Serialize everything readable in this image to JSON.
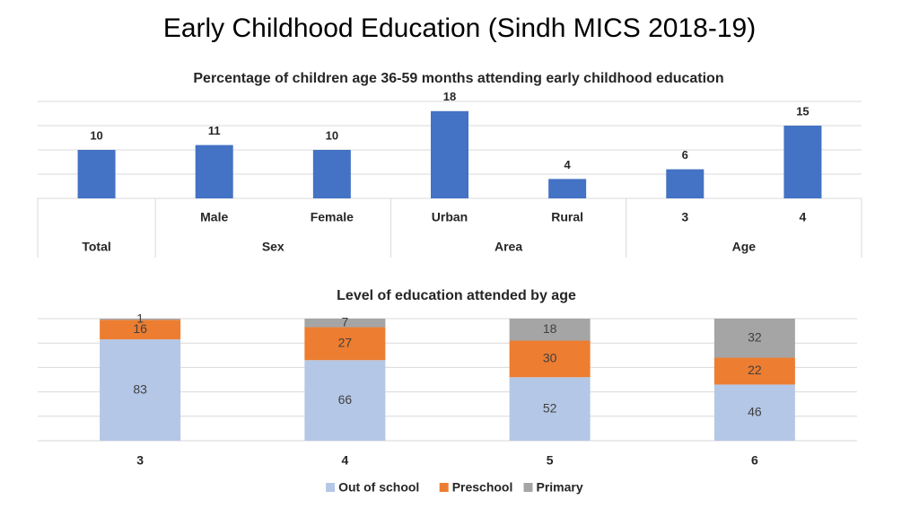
{
  "title": "Early Childhood Education (Sindh MICS 2018-19)",
  "chart_data": [
    {
      "type": "bar",
      "title": "Percentage of children age 36-59 months attending early childhood education",
      "categories": [
        null,
        "Male",
        "Female",
        "Urban",
        "Rural",
        "3",
        "4"
      ],
      "groups": [
        {
          "name": "Total",
          "size": 1
        },
        {
          "name": "Sex",
          "size": 2
        },
        {
          "name": "Area",
          "size": 2
        },
        {
          "name": "Age",
          "size": 2
        }
      ],
      "values": [
        10,
        11,
        10,
        18,
        4,
        6,
        15
      ],
      "color": "#4472c4",
      "ylim": [
        0,
        20
      ],
      "yticks": [
        0,
        5,
        10,
        15,
        20
      ],
      "grid": true,
      "tick_labels": false
    },
    {
      "type": "stacked_bar",
      "title": "Level of education attended by age",
      "categories": [
        "3",
        "4",
        "5",
        "6"
      ],
      "series": [
        {
          "name": "Out of school",
          "color": "#b4c7e7",
          "values": [
            83,
            66,
            52,
            46
          ]
        },
        {
          "name": "Preschool",
          "color": "#ed7d31",
          "values": [
            16,
            27,
            30,
            22
          ]
        },
        {
          "name": "Primary",
          "color": "#a5a5a5",
          "values": [
            1,
            7,
            18,
            32
          ]
        }
      ],
      "ylim": [
        0,
        100
      ],
      "yticks": [
        0,
        20,
        40,
        60,
        80,
        100
      ],
      "grid": true,
      "tick_labels": false,
      "legend": "bottom"
    }
  ]
}
